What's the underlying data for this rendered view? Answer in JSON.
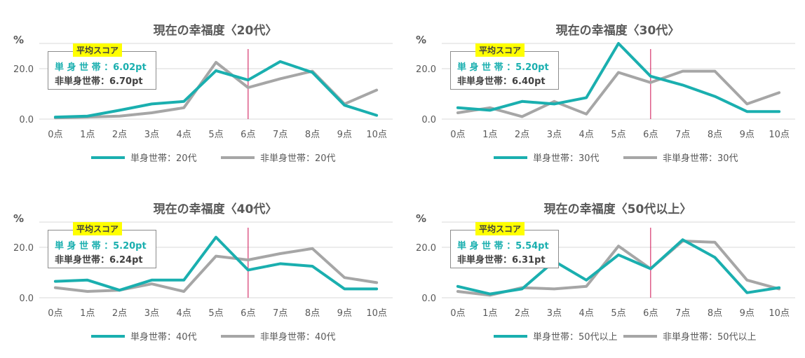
{
  "colors": {
    "single": "#1aafaf",
    "nonsingle": "#a6a6a6",
    "marker": "#d6336c",
    "grid": "#d9d9d9",
    "badge": "#ffff00"
  },
  "chart_data": [
    {
      "type": "line",
      "title": "現在の幸福度〈20代〉",
      "unit_label": "%",
      "categories": [
        "0点",
        "1点",
        "2点",
        "3点",
        "4点",
        "5点",
        "6点",
        "7点",
        "8点",
        "9点",
        "10点"
      ],
      "y_ticks": [
        "0.0",
        "20.0"
      ],
      "ylim": [
        0,
        30
      ],
      "marker_category": "6点",
      "avg_badge": "平均スコア",
      "avg_single": "単 身 世 帯 ：6.02pt",
      "avg_nonsingle": "非単身世帯：6.70pt",
      "series": [
        {
          "name": "単身世帯：20代",
          "values": [
            0.8,
            1.2,
            3.5,
            6.0,
            7.0,
            19.2,
            15.5,
            22.8,
            18.5,
            5.5,
            1.5
          ]
        },
        {
          "name": "非単身世帯：20代",
          "values": [
            0.5,
            0.8,
            1.2,
            2.5,
            4.5,
            22.5,
            12.5,
            16.0,
            19.0,
            6.0,
            11.5
          ]
        }
      ]
    },
    {
      "type": "line",
      "title": "現在の幸福度〈30代〉",
      "unit_label": "%",
      "categories": [
        "0点",
        "1点",
        "2点",
        "3点",
        "4点",
        "5点",
        "6点",
        "7点",
        "8点",
        "9点",
        "10点"
      ],
      "y_ticks": [
        "0.0",
        "20.0"
      ],
      "ylim": [
        0,
        30
      ],
      "marker_category": "6点",
      "avg_badge": "平均スコア",
      "avg_single": "単 身 世 帯 ：5.20pt",
      "avg_nonsingle": "非単身世帯：6.40pt",
      "series": [
        {
          "name": "単身世帯：30代",
          "values": [
            4.5,
            3.5,
            7.0,
            6.0,
            8.5,
            30.0,
            17.0,
            13.5,
            9.0,
            3.0,
            3.0
          ]
        },
        {
          "name": "非単身世帯：30代",
          "values": [
            2.5,
            4.5,
            1.0,
            7.0,
            2.0,
            18.5,
            14.5,
            19.0,
            19.0,
            6.0,
            10.5
          ]
        }
      ]
    },
    {
      "type": "line",
      "title": "現在の幸福度〈40代〉",
      "unit_label": "%",
      "categories": [
        "0点",
        "1点",
        "2点",
        "3点",
        "4点",
        "5点",
        "6点",
        "7点",
        "8点",
        "9点",
        "10点"
      ],
      "y_ticks": [
        "0.0",
        "20.0"
      ],
      "ylim": [
        0,
        30
      ],
      "marker_category": "6点",
      "avg_badge": "平均スコア",
      "avg_single": "単 身 世 帯 ：5.20pt",
      "avg_nonsingle": "非単身世帯：6.24pt",
      "series": [
        {
          "name": "単身世帯：40代",
          "values": [
            6.5,
            7.0,
            3.0,
            7.0,
            7.0,
            24.0,
            11.0,
            13.5,
            12.5,
            3.5,
            3.5
          ]
        },
        {
          "name": "非単身世帯：40代",
          "values": [
            4.0,
            2.5,
            3.0,
            5.5,
            2.5,
            16.5,
            15.0,
            17.5,
            19.5,
            8.0,
            6.0
          ]
        }
      ]
    },
    {
      "type": "line",
      "title": "現在の幸福度〈50代以上〉",
      "unit_label": "%",
      "categories": [
        "0点",
        "1点",
        "2点",
        "3点",
        "4点",
        "5点",
        "6点",
        "7点",
        "8点",
        "9点",
        "10点"
      ],
      "y_ticks": [
        "0.0",
        "20.0"
      ],
      "ylim": [
        0,
        30
      ],
      "marker_category": "6点",
      "avg_badge": "平均スコア",
      "avg_single": "単 身 世 帯 ：5.54pt",
      "avg_nonsingle": "非単身世帯：6.31pt",
      "series": [
        {
          "name": "単身世帯：50代以上",
          "values": [
            4.5,
            1.5,
            3.5,
            14.5,
            7.0,
            17.0,
            11.5,
            23.0,
            16.0,
            2.0,
            4.0
          ]
        },
        {
          "name": "非単身世帯：50代以上",
          "values": [
            2.5,
            1.0,
            4.0,
            3.5,
            4.5,
            20.5,
            11.5,
            22.5,
            22.0,
            7.0,
            3.5
          ]
        }
      ]
    }
  ]
}
